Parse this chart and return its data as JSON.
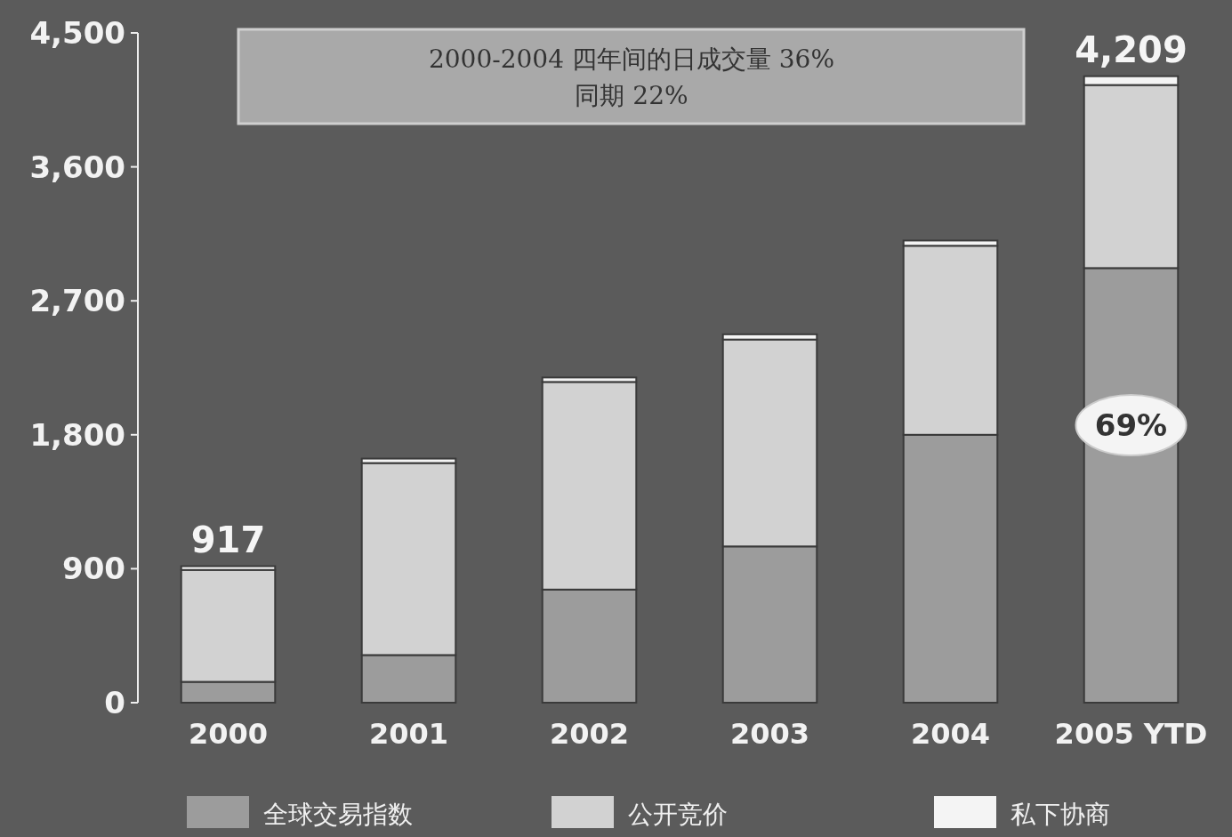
{
  "chart_data": {
    "type": "bar",
    "stacked": true,
    "title": "2000-2004 四年间的日成交量 36%",
    "subtitle": "同期 22%",
    "categories": [
      "2000",
      "2001",
      "2002",
      "2003",
      "2004",
      "2005 YTD"
    ],
    "series": [
      {
        "name": "全球交易指数",
        "color": "#9c9c9c",
        "values": [
          140,
          320,
          760,
          1050,
          1800,
          2920
        ]
      },
      {
        "name": "公开竞价",
        "color": "#d2d2d2",
        "values": [
          752,
          1290,
          1395,
          1390,
          1270,
          1230
        ]
      },
      {
        "name": "私下协商",
        "color": "#f4f4f4",
        "values": [
          25,
          30,
          30,
          35,
          35,
          59
        ]
      }
    ],
    "totals": [
      "917",
      null,
      null,
      null,
      null,
      "4,209"
    ],
    "annotations": [
      "69%"
    ],
    "ylim": [
      0,
      4500
    ],
    "yticks": [
      {
        "value": 0,
        "label": "0"
      },
      {
        "value": 900,
        "label": "900"
      },
      {
        "value": 1800,
        "label": "1,800"
      },
      {
        "value": 2700,
        "label": "2,700"
      },
      {
        "value": 3600,
        "label": "3,600"
      },
      {
        "value": 4500,
        "label": "4,500"
      }
    ],
    "grid": false,
    "legend": "bottom"
  }
}
